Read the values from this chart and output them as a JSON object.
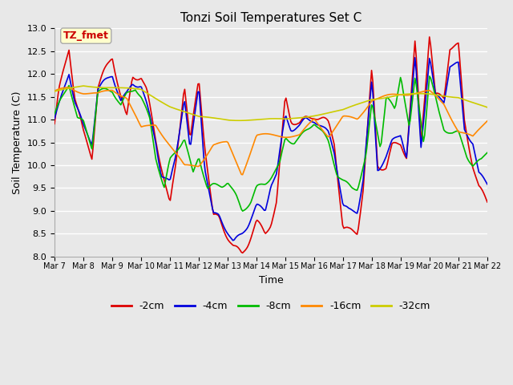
{
  "title": "Tonzi Soil Temperatures Set C",
  "xlabel": "Time",
  "ylabel": "Soil Temperature (C)",
  "ylim": [
    8.0,
    13.0
  ],
  "yticks": [
    8.0,
    8.5,
    9.0,
    9.5,
    10.0,
    10.5,
    11.0,
    11.5,
    12.0,
    12.5,
    13.0
  ],
  "xtick_labels": [
    "Mar 7",
    "Mar 8",
    "Mar 9",
    "Mar 10",
    "Mar 11",
    "Mar 12",
    "Mar 13",
    "Mar 14",
    "Mar 15",
    "Mar 16",
    "Mar 17",
    "Mar 18",
    "Mar 19",
    "Mar 20",
    "Mar 21",
    "Mar 22"
  ],
  "series_colors": [
    "#dd0000",
    "#0000dd",
    "#00bb00",
    "#ff8800",
    "#cccc00"
  ],
  "series_labels": [
    "-2cm",
    "-4cm",
    "-8cm",
    "-16cm",
    "-32cm"
  ],
  "series_lw": [
    1.2,
    1.2,
    1.2,
    1.2,
    1.2
  ],
  "annotation_text": "TZ_fmet",
  "annotation_color": "#cc0000",
  "annotation_bg": "#ffffcc",
  "annotation_border": "#aaaaaa",
  "plot_bg": "#e8e8e8",
  "fig_bg": "#e8e8e8",
  "grid_color": "#ffffff",
  "figsize": [
    6.4,
    4.8
  ],
  "dpi": 100
}
